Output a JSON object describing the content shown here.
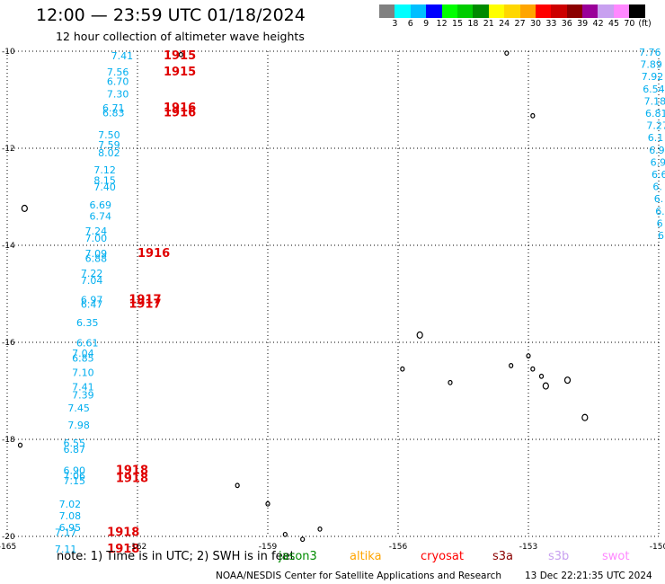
{
  "title": "12:00 — 23:59 UTC 01/18/2024",
  "subtitle": "12 hour collection of altimeter wave heights",
  "legend": {
    "unit": "(ft)",
    "colors": [
      "#808080",
      "#00ffff",
      "#00bfff",
      "#0000ff",
      "#00ff00",
      "#00cd00",
      "#008b00",
      "#ffff00",
      "#ffd700",
      "#ffa500",
      "#ff0000",
      "#cd0000",
      "#8b0000",
      "#9a0099",
      "#c8a0f0",
      "#ff88ff",
      "#000000"
    ],
    "labels": [
      "3",
      "6",
      "9",
      "12",
      "15",
      "18",
      "21",
      "24",
      "27",
      "30",
      "33",
      "36",
      "39",
      "42",
      "45",
      "70"
    ]
  },
  "axes": {
    "lon_ticks": [
      "-165",
      "-162",
      "-159",
      "-156",
      "-153",
      "-150"
    ],
    "lat_ticks": [
      "-10",
      "-12",
      "-14",
      "-16",
      "-18",
      "-20"
    ],
    "lon_range": [
      -165,
      -150
    ],
    "lat_range": [
      -20,
      -10
    ]
  },
  "wave_heights_left": [
    {
      "lat": -10.17,
      "lon": -162.1,
      "v": "7.41"
    },
    {
      "lat": -10.5,
      "lon": -162.2,
      "v": "7.56"
    },
    {
      "lat": -10.69,
      "lon": -162.2,
      "v": "6.70"
    },
    {
      "lat": -10.95,
      "lon": -162.2,
      "v": "7.30"
    },
    {
      "lat": -11.24,
      "lon": -162.3,
      "v": "6.71"
    },
    {
      "lat": -11.34,
      "lon": -162.3,
      "v": "6.83"
    },
    {
      "lat": -11.8,
      "lon": -162.4,
      "v": "7.50"
    },
    {
      "lat": -12.0,
      "lon": -162.4,
      "v": "7.59"
    },
    {
      "lat": -12.17,
      "lon": -162.4,
      "v": "8.02"
    },
    {
      "lat": -12.52,
      "lon": -162.5,
      "v": "7.12"
    },
    {
      "lat": -12.73,
      "lon": -162.5,
      "v": "8.15"
    },
    {
      "lat": -12.87,
      "lon": -162.5,
      "v": "7.40"
    },
    {
      "lat": -13.24,
      "lon": -162.6,
      "v": "6.69"
    },
    {
      "lat": -13.47,
      "lon": -162.6,
      "v": "6.74"
    },
    {
      "lat": -13.78,
      "lon": -162.7,
      "v": "7.24"
    },
    {
      "lat": -13.93,
      "lon": -162.7,
      "v": "7.00"
    },
    {
      "lat": -14.24,
      "lon": -162.7,
      "v": "7.09"
    },
    {
      "lat": -14.34,
      "lon": -162.7,
      "v": "6.88"
    },
    {
      "lat": -14.65,
      "lon": -162.8,
      "v": "7.22"
    },
    {
      "lat": -14.8,
      "lon": -162.8,
      "v": "7.04"
    },
    {
      "lat": -15.19,
      "lon": -162.8,
      "v": "6.97"
    },
    {
      "lat": -15.29,
      "lon": -162.8,
      "v": "6.47"
    },
    {
      "lat": -15.67,
      "lon": -162.9,
      "v": "6.35"
    },
    {
      "lat": -16.08,
      "lon": -162.9,
      "v": "6.61"
    },
    {
      "lat": -16.3,
      "lon": -163.0,
      "v": "7.04"
    },
    {
      "lat": -16.4,
      "lon": -163.0,
      "v": "6.85"
    },
    {
      "lat": -16.69,
      "lon": -163.0,
      "v": "7.10"
    },
    {
      "lat": -16.99,
      "lon": -163.0,
      "v": "7.41"
    },
    {
      "lat": -17.16,
      "lon": -163.0,
      "v": "7.39"
    },
    {
      "lat": -17.43,
      "lon": -163.1,
      "v": "7.45"
    },
    {
      "lat": -17.78,
      "lon": -163.1,
      "v": "7.98"
    },
    {
      "lat": -18.15,
      "lon": -163.2,
      "v": "6.55"
    },
    {
      "lat": -18.28,
      "lon": -163.2,
      "v": "6.87"
    },
    {
      "lat": -18.71,
      "lon": -163.2,
      "v": "6.90"
    },
    {
      "lat": -18.82,
      "lon": -163.2,
      "v": "7.06"
    },
    {
      "lat": -18.93,
      "lon": -163.2,
      "v": "7.15"
    },
    {
      "lat": -19.41,
      "lon": -163.3,
      "v": "7.02"
    },
    {
      "lat": -19.65,
      "lon": -163.3,
      "v": "7.08"
    },
    {
      "lat": -19.89,
      "lon": -163.3,
      "v": "6.95"
    },
    {
      "lat": -19.99,
      "lon": -163.4,
      "v": "7.17"
    },
    {
      "lat": -20.33,
      "lon": -163.4,
      "v": "7.11"
    }
  ],
  "wave_heights_right": [
    "7.76",
    "7.89",
    "7.92",
    "6.54",
    "7.18",
    "6.81",
    "7.27",
    "6.1",
    "6.9",
    "6.9",
    "6.6",
    "6.",
    "6.",
    "6.",
    "6",
    "6."
  ],
  "time_labels": [
    {
      "lat": -10.17,
      "lon": -161.4,
      "t": "1915"
    },
    {
      "lat": -10.5,
      "lon": -161.4,
      "t": "1915"
    },
    {
      "lat": -11.24,
      "lon": -161.4,
      "t": "1916"
    },
    {
      "lat": -11.34,
      "lon": -161.4,
      "t": "1916"
    },
    {
      "lat": -14.24,
      "lon": -162.0,
      "t": "1916"
    },
    {
      "lat": -15.19,
      "lon": -162.2,
      "t": "1917"
    },
    {
      "lat": -15.29,
      "lon": -162.2,
      "t": "1917"
    },
    {
      "lat": -18.71,
      "lon": -162.5,
      "t": "1918"
    },
    {
      "lat": -18.88,
      "lon": -162.5,
      "t": "1918"
    },
    {
      "lat": -19.99,
      "lon": -162.7,
      "t": "1918"
    },
    {
      "lat": -20.33,
      "lon": -162.7,
      "t": "1918"
    }
  ],
  "islands": [
    {
      "lat": -10.07,
      "lon": -161.0
    },
    {
      "lat": -13.24,
      "lon": -164.6
    },
    {
      "lat": -18.12,
      "lon": -164.7
    },
    {
      "lat": -18.95,
      "lon": -159.7
    },
    {
      "lat": -19.33,
      "lon": -159.0
    },
    {
      "lat": -19.96,
      "lon": -158.6
    },
    {
      "lat": -20.06,
      "lon": -158.2
    },
    {
      "lat": -19.85,
      "lon": -157.8
    },
    {
      "lat": -10.04,
      "lon": -153.5
    },
    {
      "lat": -11.33,
      "lon": -152.9
    },
    {
      "lat": -15.85,
      "lon": -155.5
    },
    {
      "lat": -16.55,
      "lon": -155.9
    },
    {
      "lat": -16.83,
      "lon": -154.8
    },
    {
      "lat": -16.28,
      "lon": -153.0
    },
    {
      "lat": -16.48,
      "lon": -153.4
    },
    {
      "lat": -16.55,
      "lon": -152.9
    },
    {
      "lat": -16.7,
      "lon": -152.7
    },
    {
      "lat": -16.9,
      "lon": -152.6
    },
    {
      "lat": -16.78,
      "lon": -152.1
    },
    {
      "lat": -17.55,
      "lon": -151.7
    }
  ],
  "notes": {
    "prefix": "note:  1) Time is in UTC;  2) SWH is in feet",
    "satellites": [
      {
        "name": "jason3",
        "color": "#008b00"
      },
      {
        "name": "altika",
        "color": "#ffa500"
      },
      {
        "name": "cryosat",
        "color": "#ff0000"
      },
      {
        "name": "s3a",
        "color": "#8b0000"
      },
      {
        "name": "s3b",
        "color": "#c8a0f0"
      },
      {
        "name": "swot",
        "color": "#ff88ff"
      }
    ]
  },
  "footer": {
    "credit": "NOAA/NESDIS Center for Satellite Applications and Research",
    "timestamp": "13 Dec 22:21:35 UTC 2024"
  },
  "colors": {
    "wave_text": "#00aeef",
    "time_text": "#e00000",
    "grid": "#000000"
  }
}
